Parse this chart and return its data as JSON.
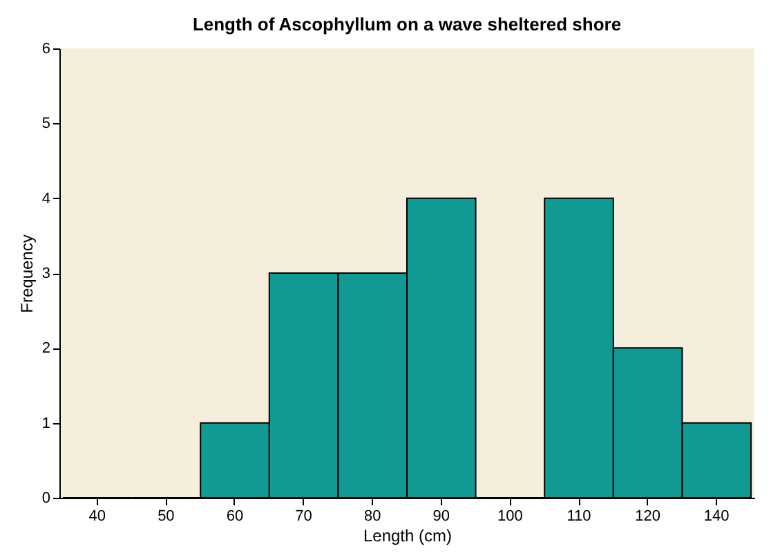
{
  "chart_data": {
    "type": "bar",
    "title": "Length of Ascophyllum on a wave sheltered shore",
    "xlabel": "Length (cm)",
    "ylabel": "Frequency",
    "categories": [
      "40",
      "50",
      "60",
      "70",
      "80",
      "90",
      "100",
      "110",
      "120",
      "140"
    ],
    "values": [
      0,
      0,
      1,
      3,
      3,
      4,
      0,
      4,
      2,
      1
    ],
    "color": "#109a93",
    "ylim": [
      0,
      6
    ],
    "yticks": [
      0,
      1,
      2,
      3,
      4,
      5,
      6
    ],
    "grid": false
  }
}
